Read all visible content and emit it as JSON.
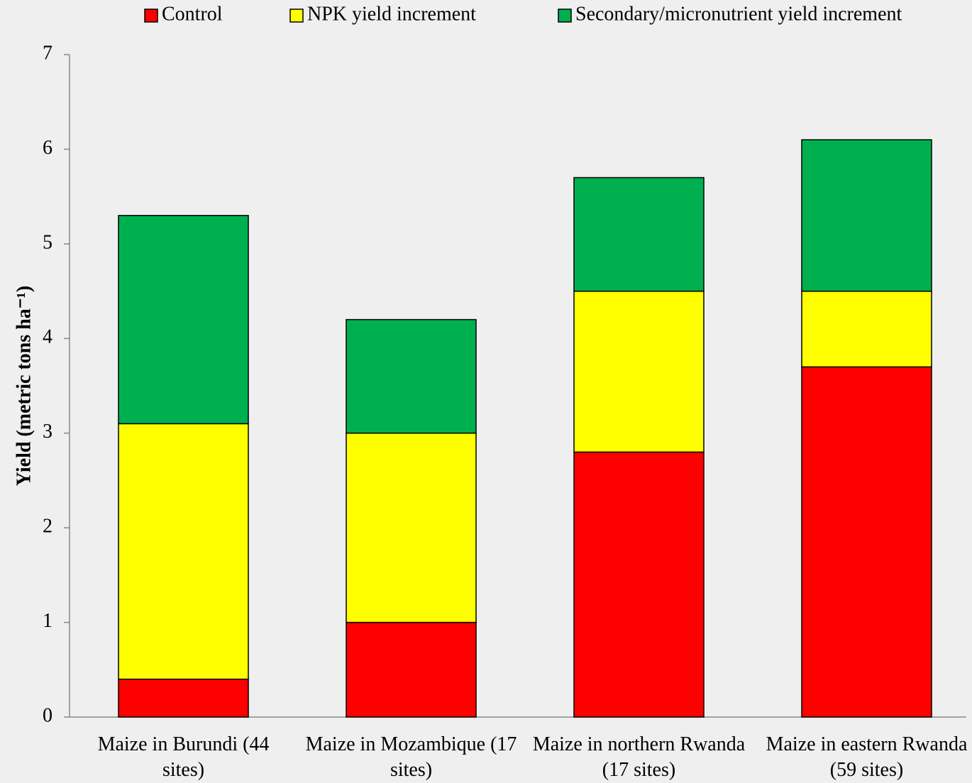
{
  "chart_data": {
    "type": "stacked_bar",
    "y_label": "Yield (metric tons ha⁻¹)",
    "categories": [
      "Maize in Burundi (44 sites)",
      "Maize in Mozambique (17 sites)",
      "Maize in northern Rwanda (17 sites)",
      "Maize in eastern Rwanda (59 sites)"
    ],
    "series": [
      {
        "name": "Control",
        "color": "#ff0000",
        "values": [
          0.4,
          1.0,
          2.8,
          3.7
        ]
      },
      {
        "name": "NPK yield increment",
        "color": "#ffff00",
        "values": [
          2.7,
          2.0,
          1.7,
          0.8
        ]
      },
      {
        "name": "Secondary/micronutrient yield increment",
        "color": "#00b050",
        "values": [
          2.2,
          1.2,
          1.2,
          1.6
        ]
      }
    ],
    "ylim": [
      0,
      7
    ],
    "yticks": [
      0,
      1,
      2,
      3,
      4,
      5,
      6,
      7
    ],
    "legend": "top"
  }
}
